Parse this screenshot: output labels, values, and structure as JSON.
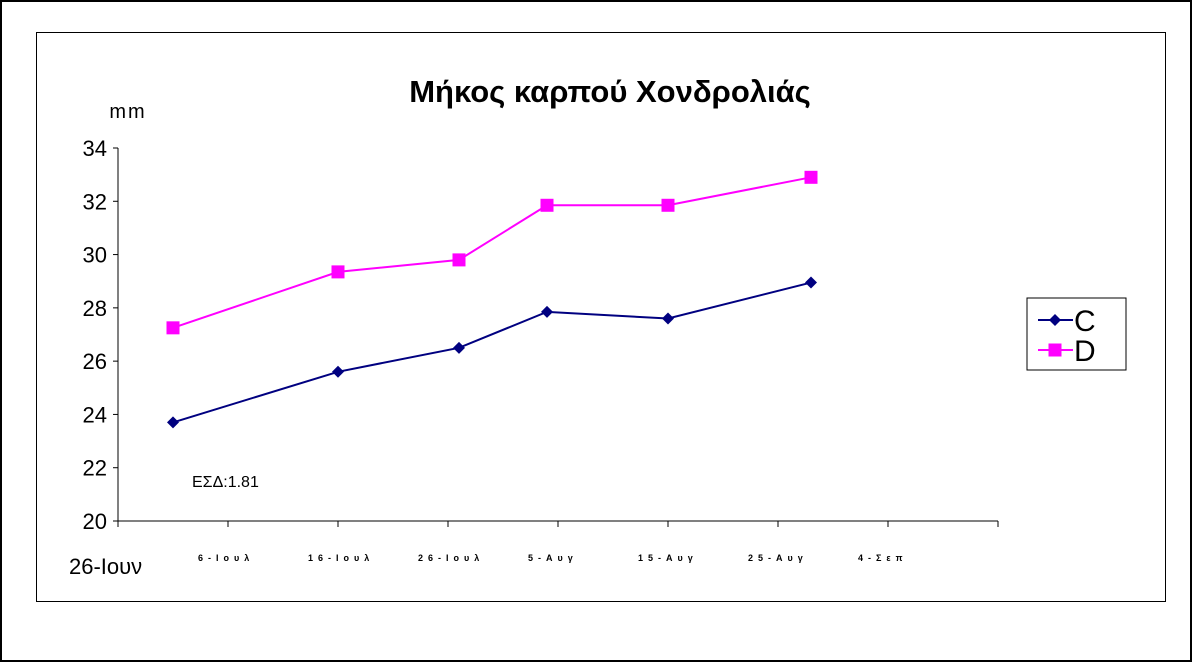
{
  "chart_data": {
    "type": "line",
    "title": "Μήκος καρπού Χονδρολιάς",
    "ylabel": "mm",
    "xlabel": "",
    "ylim": [
      20,
      34
    ],
    "y_ticks": [
      "20",
      "22",
      "24",
      "26",
      "28",
      "30",
      "32",
      "34"
    ],
    "x_first_label": "26-Ιουν",
    "categories": [
      "6-Ιουλ",
      "16-Ιουλ",
      "26-Ιουλ",
      "5-Αυγ",
      "15-Αυγ",
      "25-Αυγ",
      "4-Σεπ"
    ],
    "x_axis_range": [
      "2000-06-26",
      "2000-09-14"
    ],
    "series": [
      {
        "name": "C",
        "color": "#000080",
        "marker": "diamond",
        "x": [
          "2000-07-01",
          "2000-07-16",
          "2000-07-27",
          "2000-08-04",
          "2000-08-15",
          "2000-08-28"
        ],
        "values": [
          23.7,
          25.6,
          26.5,
          27.85,
          27.6,
          28.95
        ]
      },
      {
        "name": "D",
        "color": "#ff00ff",
        "marker": "square",
        "x": [
          "2000-07-01",
          "2000-07-16",
          "2000-07-27",
          "2000-08-04",
          "2000-08-15",
          "2000-08-28"
        ],
        "values": [
          27.25,
          29.35,
          29.8,
          31.85,
          31.85,
          32.9
        ]
      }
    ],
    "annotation": "ΕΣΔ:1.81",
    "legend_position": "right",
    "grid": false
  }
}
